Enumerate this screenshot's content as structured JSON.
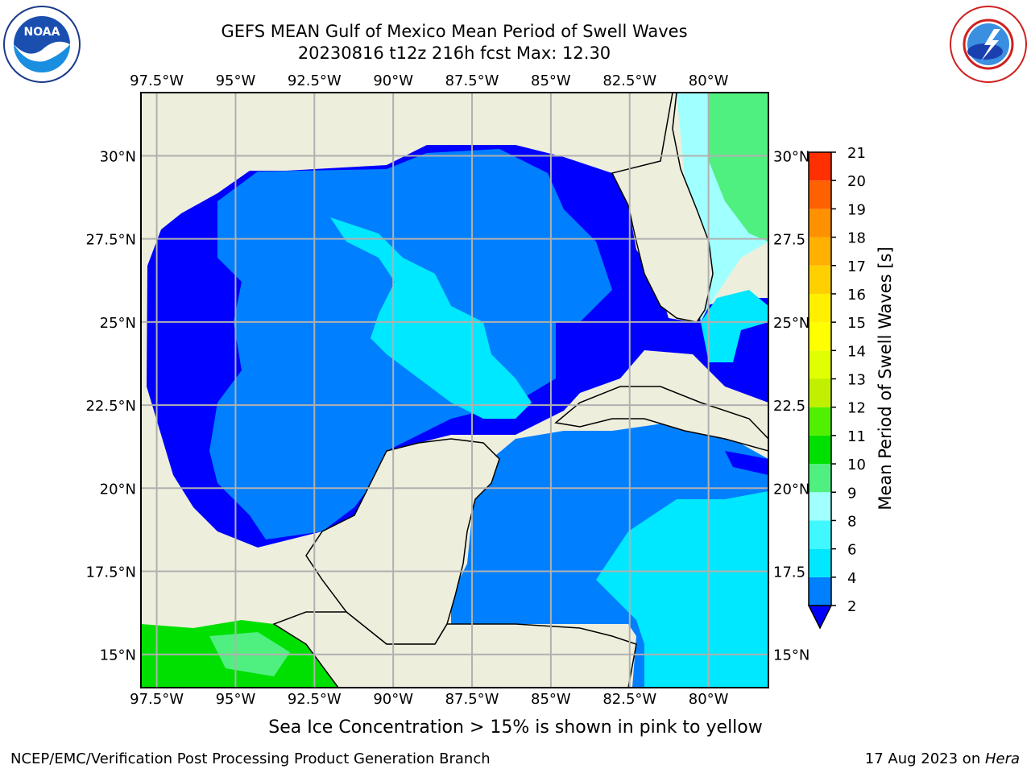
{
  "title_line1": "GEFS MEAN Gulf of Mexico Mean Period of Swell Waves",
  "title_line2": "20230816 t12z 216h fcst   Max: 12.30",
  "sea_ice_note": "Sea Ice Concentration > 15% is shown in pink to yellow",
  "footer_left": "NCEP/EMC/Verification Post Processing Product Generation Branch",
  "footer_date": "17 Aug 2023 on ",
  "footer_machine": "Hera",
  "logos": {
    "left": {
      "icon": "noaa-logo",
      "text": "NOAA",
      "ring_text_top": "NATIONAL OCEANIC AND ATMOSPHERIC ADMINISTRATION",
      "ring_text_bottom": "U.S. DEPARTMENT OF COMMERCE"
    },
    "right": {
      "icon": "nws-logo",
      "ring_text": "NATIONAL WEATHER SERVICE"
    }
  },
  "map": {
    "lon_labels": [
      "97.5°W",
      "95°W",
      "92.5°W",
      "90°W",
      "87.5°W",
      "85°W",
      "82.5°W",
      "80°W"
    ],
    "lat_labels_left": [
      "30°N",
      "27.5°N",
      "25°N",
      "22.5°N",
      "20°N",
      "17.5°N",
      "15°N"
    ],
    "lat_labels_right": [
      "30°N",
      "27.5",
      "25°N",
      "22.5",
      "20°N",
      "17.5",
      "15°N"
    ],
    "lon_values": [
      -97.5,
      -95,
      -92.5,
      -90,
      -87.5,
      -85,
      -82.5,
      -80
    ],
    "lat_values": [
      30,
      27.5,
      25,
      22.5,
      20,
      17.5,
      15
    ],
    "extent": {
      "lon_min": -98,
      "lon_max": -78.1,
      "lat_min": 14.0,
      "lat_max": 31.9
    },
    "land_color": "#eeeedd",
    "grid_color": "#b0b0b0"
  },
  "colorbar": {
    "label": "Mean Period of Swell Waves [s]",
    "tick_values": [
      "2",
      "4",
      "6",
      "8",
      "9",
      "10",
      "11",
      "12",
      "13",
      "14",
      "15",
      "16",
      "17",
      "18",
      "19",
      "20",
      "21"
    ],
    "levels": [
      2,
      4,
      6,
      8,
      9,
      10,
      11,
      12,
      13,
      14,
      15,
      16,
      17,
      18,
      19,
      20,
      21
    ],
    "colors": [
      "#0080ff",
      "#00e8ff",
      "#40f8ff",
      "#a0ffff",
      "#50f080",
      "#00e000",
      "#50f000",
      "#c0f000",
      "#e0ff00",
      "#ffff00",
      "#fff000",
      "#ffd000",
      "#ffb000",
      "#ff9000",
      "#ff6000",
      "#ff3000",
      "#ff0000"
    ],
    "extend_below_color": "#0000ff"
  }
}
